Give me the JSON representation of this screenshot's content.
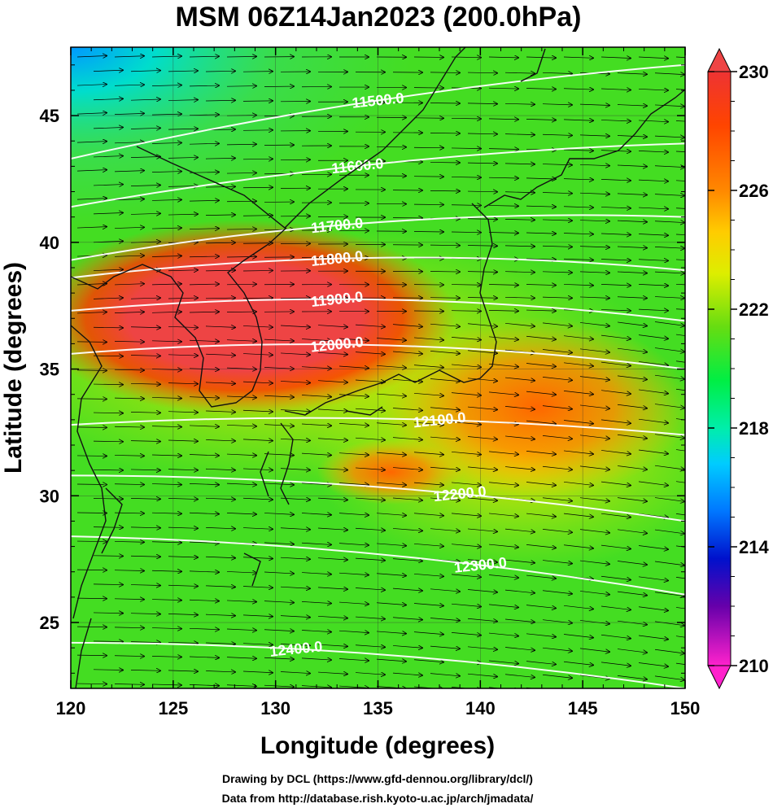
{
  "title": "MSM 06Z14Jan2023 (200.0hPa)",
  "xlabel": "Longitude (degrees)",
  "ylabel": "Latitude  (degrees)",
  "credit_line1": "Drawing by DCL (https://www.gfd-dennou.org/library/dcl/)",
  "credit_line2": "Data from http://database.rish.kyoto-u.ac.jp/arch/jmadata/",
  "map": {
    "lon_range": [
      120,
      150
    ],
    "lat_range": [
      22.4,
      47.7
    ],
    "lon_ticks": [
      "120",
      "125",
      "130",
      "135",
      "140",
      "145",
      "150"
    ],
    "lat_ticks": [
      "25",
      "30",
      "35",
      "40",
      "45"
    ],
    "grid": true,
    "fill_variable": "temperature (K)",
    "contour_variable": "geopotential height (m)",
    "vectors": "wind streamline arrows"
  },
  "colorbar": {
    "range": [
      210,
      230
    ],
    "labels": [
      "230",
      "226",
      "222",
      "218",
      "214",
      "210"
    ],
    "colors": [
      "#ff33cc",
      "#9900cc",
      "#0000cc",
      "#0066ff",
      "#00ccff",
      "#00ee88",
      "#22dd22",
      "#99dd00",
      "#ffee00",
      "#ff9900",
      "#ff3300",
      "#ee4444"
    ]
  },
  "contours": [
    {
      "label": "11500.0",
      "lat_at_120": 43.3,
      "lat_at_150": 47.0
    },
    {
      "label": "11600.0",
      "lat_at_120": 41.4,
      "lat_at_150": 43.9
    },
    {
      "label": "11700.0",
      "lat_at_120": 39.3,
      "lat_at_150": 41.0
    },
    {
      "label": "11800.0",
      "lat_at_120": 38.6,
      "lat_at_150": 38.9
    },
    {
      "label": "11900.0",
      "lat_at_120": 37.3,
      "lat_at_150": 36.9
    },
    {
      "label": "12000.0",
      "lat_at_120": 35.6,
      "lat_at_150": 35.0
    },
    {
      "label": "12100.0",
      "lat_at_120": 32.8,
      "lat_at_150": 32.4
    },
    {
      "label": "12200.0",
      "lat_at_120": 30.8,
      "lat_at_150": 29.0
    },
    {
      "label": "12300.0",
      "lat_at_120": 28.4,
      "lat_at_150": 26.1
    },
    {
      "label": "12400.0",
      "lat_at_120": 24.2,
      "lat_at_150": 22.4
    }
  ]
}
